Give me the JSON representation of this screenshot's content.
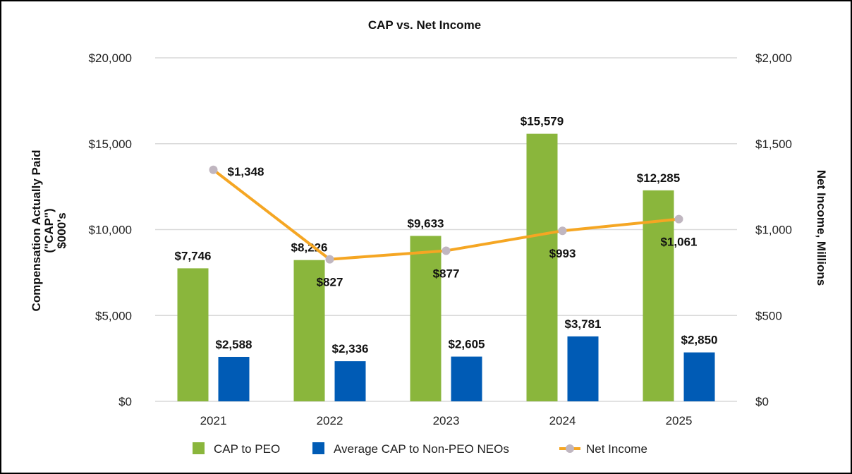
{
  "chart_data": {
    "type": "bar",
    "title": "CAP vs. Net Income",
    "categories": [
      "2021",
      "2022",
      "2023",
      "2024",
      "2025"
    ],
    "series": [
      {
        "name": "CAP to PEO",
        "kind": "bar",
        "axis": "left",
        "color": "#8ab63c",
        "values": [
          7746,
          8226,
          9633,
          15579,
          12285
        ],
        "labels": [
          "$7,746",
          "$8,226",
          "$9,633",
          "$15,579",
          "$12,285"
        ]
      },
      {
        "name": "Average CAP to Non-PEO NEOs",
        "kind": "bar",
        "axis": "left",
        "color": "#005bb5",
        "values": [
          2588,
          2336,
          2605,
          3781,
          2850
        ],
        "labels": [
          "$2,588",
          "$2,336",
          "$2,605",
          "$3,781",
          "$2,850"
        ]
      },
      {
        "name": "Net Income",
        "kind": "line",
        "axis": "right",
        "color": "#f5a623",
        "marker_color": "#c0b6c0",
        "values": [
          1348,
          827,
          877,
          993,
          1061
        ],
        "labels": [
          "$1,348",
          "$827",
          "$877",
          "$993",
          "$1,061"
        ]
      }
    ],
    "ylabel_left_lines": [
      "Compensation Actually Paid",
      "(\"CAP\")",
      "$000's"
    ],
    "ylabel_right": "Net Income, Millions",
    "ylim_left": [
      0,
      20000
    ],
    "ylim_right": [
      0,
      2000
    ],
    "yticks_left": [
      "$0",
      "$5,000",
      "$10,000",
      "$15,000",
      "$20,000"
    ],
    "yticks_right": [
      "$0",
      "$500",
      "$1,000",
      "$1,500",
      "$2,000"
    ],
    "grid": true,
    "legend_position": "bottom"
  }
}
